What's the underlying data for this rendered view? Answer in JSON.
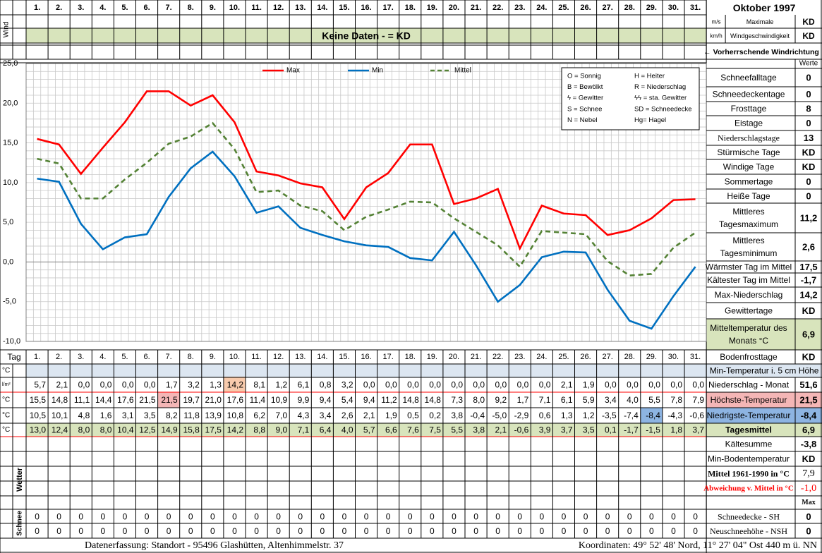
{
  "title": "Oktober 1997",
  "days": [
    "1.",
    "2.",
    "3.",
    "4.",
    "5.",
    "6.",
    "7.",
    "8.",
    "9.",
    "10.",
    "11.",
    "12.",
    "13.",
    "14.",
    "15.",
    "16.",
    "17.",
    "18.",
    "19.",
    "20.",
    "21.",
    "22.",
    "23.",
    "24.",
    "25.",
    "26.",
    "27.",
    "28.",
    "29.",
    "30.",
    "31."
  ],
  "wind": {
    "side_label": "Wind",
    "unit_ms": "m/s",
    "unit_kmh": "km/h",
    "max_label_1": "Maximale",
    "max_label_2": "Windgeschwindigkeit",
    "max_ms_value": "KD",
    "max_kmh_value": "KD",
    "no_data": "Keine Daten -  = KD",
    "direction_label": "← Vorherrschende Windrichtung"
  },
  "legend_codes": [
    [
      "O = Sonnig",
      "H = Heiter"
    ],
    [
      "B = Bewölkt",
      "R = Niederschlag"
    ],
    [
      "ϟ = Gewitter",
      "ϟϟ = sta. Gewitter"
    ],
    [
      "S = Schnee",
      "SD = Schneedecke"
    ],
    [
      "N = Nebel",
      "Hg= Hagel"
    ]
  ],
  "stats": {
    "header": "Werte",
    "rows": [
      {
        "label": "Schneefalltage",
        "value": "0"
      },
      {
        "label": "Schneedeckentage",
        "value": "0"
      },
      {
        "label": "Frosttage",
        "value": "8"
      },
      {
        "label": "Eistage",
        "value": "0"
      },
      {
        "label": "Niederschlagstage",
        "value": "13"
      },
      {
        "label": "Stürmische Tage",
        "value": "KD"
      },
      {
        "label": "Windige Tage",
        "value": "KD"
      },
      {
        "label": "Sommertage",
        "value": "0"
      },
      {
        "label": "Heiße Tage",
        "value": "0"
      },
      {
        "label": "Mittleres Tagesmaximum",
        "value": "11,2"
      },
      {
        "label": "Mittleres Tagesminimum",
        "value": "2,6"
      },
      {
        "label": "Wärmster Tag im Mittel",
        "value": "17,5"
      },
      {
        "label": "Kältester Tag im Mittel",
        "value": "-1,7"
      },
      {
        "label": "Max-Niederschlag",
        "value": "14,2"
      },
      {
        "label": "Gewittertage",
        "value": "KD"
      },
      {
        "label": "Mitteltemperatur des Monats °C",
        "value": "6,9"
      },
      {
        "label": "Bodenfrosttage",
        "value": "KD"
      }
    ]
  },
  "table": {
    "tag_label": "Tag",
    "soil_label": "Min-Temperatur i. 5 cm Höhe",
    "rows": [
      {
        "unit": "°C",
        "label": "",
        "total": "",
        "values": []
      },
      {
        "unit": "l/m²",
        "label": "Niederschlag - Monat",
        "total": "51,6",
        "values": [
          "5,7",
          "2,1",
          "0,0",
          "0,0",
          "0,0",
          "0,0",
          "1,7",
          "3,2",
          "1,3",
          "14,2",
          "8,1",
          "1,2",
          "6,1",
          "0,8",
          "3,2",
          "0,0",
          "0,0",
          "0,0",
          "0,0",
          "0,0",
          "0,0",
          "0,0",
          "0,0",
          "0,0",
          "2,1",
          "1,9",
          "0,0",
          "0,0",
          "0,0",
          "0,0",
          "0,0"
        ]
      },
      {
        "unit": "°C",
        "label": "Höchste-Temperatur",
        "total": "21,5",
        "values": [
          "15,5",
          "14,8",
          "11,1",
          "14,4",
          "17,6",
          "21,5",
          "21,5",
          "19,7",
          "21,0",
          "17,6",
          "11,4",
          "10,9",
          "9,9",
          "9,4",
          "5,4",
          "9,4",
          "11,2",
          "14,8",
          "14,8",
          "7,3",
          "8,0",
          "9,2",
          "1,7",
          "7,1",
          "6,1",
          "5,9",
          "3,4",
          "4,0",
          "5,5",
          "7,8",
          "7,9"
        ]
      },
      {
        "unit": "°C",
        "label": "Niedrigste-Temperatur",
        "total": "-8,4",
        "values": [
          "10,5",
          "10,1",
          "4,8",
          "1,6",
          "3,1",
          "3,5",
          "8,2",
          "11,8",
          "13,9",
          "10,8",
          "6,2",
          "7,0",
          "4,3",
          "3,4",
          "2,6",
          "2,1",
          "1,9",
          "0,5",
          "0,2",
          "3,8",
          "-0,4",
          "-5,0",
          "-2,9",
          "0,6",
          "1,3",
          "1,2",
          "-3,5",
          "-7,4",
          "-8,4",
          "-4,3",
          "-0,6"
        ]
      },
      {
        "unit": "°C",
        "label": "Tagesmittel",
        "total": "6,9",
        "values": [
          "13,0",
          "12,4",
          "8,0",
          "8,0",
          "10,4",
          "12,5",
          "14,9",
          "15,8",
          "17,5",
          "14,2",
          "8,8",
          "9,0",
          "7,1",
          "6,4",
          "4,0",
          "5,7",
          "6,6",
          "7,6",
          "7,5",
          "5,5",
          "3,8",
          "2,1",
          "-0,6",
          "3,9",
          "3,7",
          "3,5",
          "0,1",
          "-1,7",
          "-1,5",
          "1,8",
          "3,7"
        ]
      }
    ]
  },
  "lower": {
    "wetter_label": "Wetter",
    "schnee_label": "Schnee",
    "rows": [
      {
        "label": "Kältesumme",
        "value": "-3,8"
      },
      {
        "label": "Min-Bodentemperatur",
        "value": "KD"
      },
      {
        "label": "Mittel 1961-1990 in °C",
        "value": "7,9"
      },
      {
        "label": "Abweichung v. Mittel in °C",
        "value": "-1,0"
      },
      {
        "label": "",
        "value": "Max"
      }
    ],
    "snow_rows": [
      {
        "label": "Schneedecke -   SH",
        "value": "0",
        "values": [
          "0",
          "0",
          "0",
          "0",
          "0",
          "0",
          "0",
          "0",
          "0",
          "0",
          "0",
          "0",
          "0",
          "0",
          "0",
          "0",
          "0",
          "0",
          "0",
          "0",
          "0",
          "0",
          "0",
          "0",
          "0",
          "0",
          "0",
          "0",
          "0",
          "0",
          "0"
        ]
      },
      {
        "label": "Neuschneehöhe - NSH",
        "value": "0",
        "values": [
          "0",
          "0",
          "0",
          "0",
          "0",
          "0",
          "0",
          "0",
          "0",
          "0",
          "0",
          "0",
          "0",
          "0",
          "0",
          "0",
          "0",
          "0",
          "0",
          "0",
          "0",
          "0",
          "0",
          "0",
          "0",
          "0",
          "0",
          "0",
          "0",
          "0",
          "0"
        ]
      }
    ]
  },
  "footer": {
    "left": "Datenerfassung:  Standort -  95496  Glashütten, Altenhimmelstr. 37",
    "right": "Koordinaten:  49° 52' 48' Nord,  11° 27' 04\" Ost   440 m ü. NN"
  },
  "colors": {
    "max": "#ff0000",
    "min": "#0070c0",
    "mean": "#548235",
    "band_green": "#d8e4bc",
    "band_blue": "#dce6f1",
    "high_red": "#f4b6b6",
    "high_orange": "#f8cbad",
    "low_blue": "#8db4e2"
  },
  "chart_data": {
    "type": "line",
    "x": [
      "1.",
      "2.",
      "3.",
      "4.",
      "5.",
      "6.",
      "7.",
      "8.",
      "9.",
      "10.",
      "11.",
      "12.",
      "13.",
      "14.",
      "15.",
      "16.",
      "17.",
      "18.",
      "19.",
      "20.",
      "21.",
      "22.",
      "23.",
      "24.",
      "25.",
      "26.",
      "27.",
      "28.",
      "29.",
      "30.",
      "31."
    ],
    "series": [
      {
        "name": "Max",
        "values": [
          15.5,
          14.8,
          11.1,
          14.4,
          17.6,
          21.5,
          21.5,
          19.7,
          21.0,
          17.6,
          11.4,
          10.9,
          9.9,
          9.4,
          5.4,
          9.4,
          11.2,
          14.8,
          14.8,
          7.3,
          8.0,
          9.2,
          1.7,
          7.1,
          6.1,
          5.9,
          3.4,
          4.0,
          5.5,
          7.8,
          7.9
        ]
      },
      {
        "name": "Min",
        "values": [
          10.5,
          10.1,
          4.8,
          1.6,
          3.1,
          3.5,
          8.2,
          11.8,
          13.9,
          10.8,
          6.2,
          7.0,
          4.3,
          3.4,
          2.6,
          2.1,
          1.9,
          0.5,
          0.2,
          3.8,
          -0.4,
          -5.0,
          -2.9,
          0.6,
          1.3,
          1.2,
          -3.5,
          -7.4,
          -8.4,
          -4.3,
          -0.6
        ]
      },
      {
        "name": "Mittel",
        "values": [
          13.0,
          12.4,
          8.0,
          8.0,
          10.4,
          12.5,
          14.9,
          15.8,
          17.5,
          14.2,
          8.8,
          9.0,
          7.1,
          6.4,
          4.0,
          5.7,
          6.6,
          7.6,
          7.5,
          5.5,
          3.8,
          2.1,
          -0.6,
          3.9,
          3.7,
          3.5,
          0.1,
          -1.7,
          -1.5,
          1.8,
          3.7
        ]
      }
    ],
    "ylim": [
      -10,
      25
    ],
    "yticks": [
      "25,0",
      "20,0",
      "15,0",
      "10,0",
      "5,0",
      "0,0",
      "-5,0",
      "-10,0"
    ],
    "grid": true,
    "legend": "top"
  }
}
